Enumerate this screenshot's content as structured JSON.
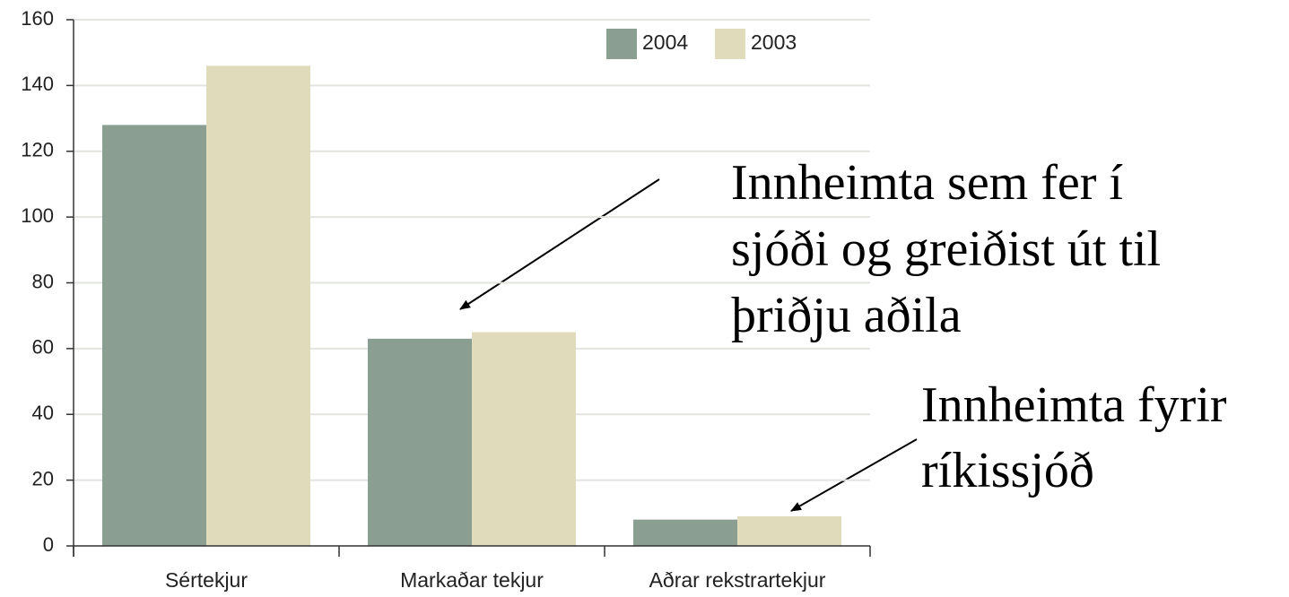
{
  "chart_data": {
    "type": "bar",
    "categories": [
      "Sértekjur",
      "Markaðar tekjur",
      "Aðrar rekstrartekjur"
    ],
    "series": [
      {
        "name": "2004",
        "color": "#8a9e92",
        "values": [
          128,
          63,
          8
        ]
      },
      {
        "name": "2003",
        "color": "#e0dbbb",
        "values": [
          146,
          65,
          9
        ]
      }
    ],
    "ylim": [
      0,
      160
    ],
    "yticks": [
      0,
      20,
      40,
      60,
      80,
      100,
      120,
      140,
      160
    ],
    "grid": true,
    "legend": "top-right",
    "annotations": [
      {
        "lines": [
          "Innheimta sem fer í",
          "sjóði og greiðist út til",
          "þriðju aðila"
        ]
      },
      {
        "lines": [
          "Innheimta fyrir",
          "ríkissjóð"
        ]
      }
    ]
  }
}
